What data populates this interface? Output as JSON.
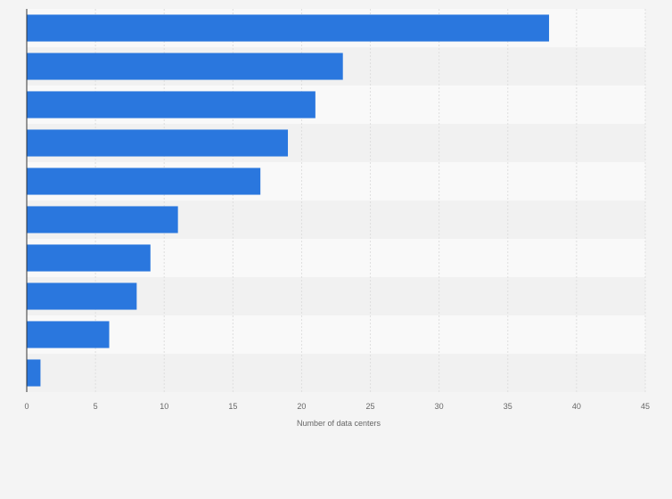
{
  "chart_data": {
    "type": "bar",
    "orientation": "horizontal",
    "categories": [
      "",
      "",
      "",
      "",
      "",
      "",
      "",
      "",
      "",
      ""
    ],
    "values": [
      38,
      23,
      21,
      19,
      17,
      11,
      9,
      8,
      6,
      1
    ],
    "title": "",
    "xlabel": "Number of data centers",
    "ylabel": "",
    "xlim": [
      0,
      45
    ],
    "xticks": [
      "0",
      "5",
      "10",
      "15",
      "20",
      "25",
      "30",
      "35",
      "40",
      "45"
    ],
    "grid": "vertical",
    "legend": "none",
    "colors": {
      "bar": "#2a77de",
      "band_light": "#f9f9f9",
      "band_dark": "#f1f1f1",
      "grid": "#dedede",
      "axis": "#333333"
    }
  }
}
